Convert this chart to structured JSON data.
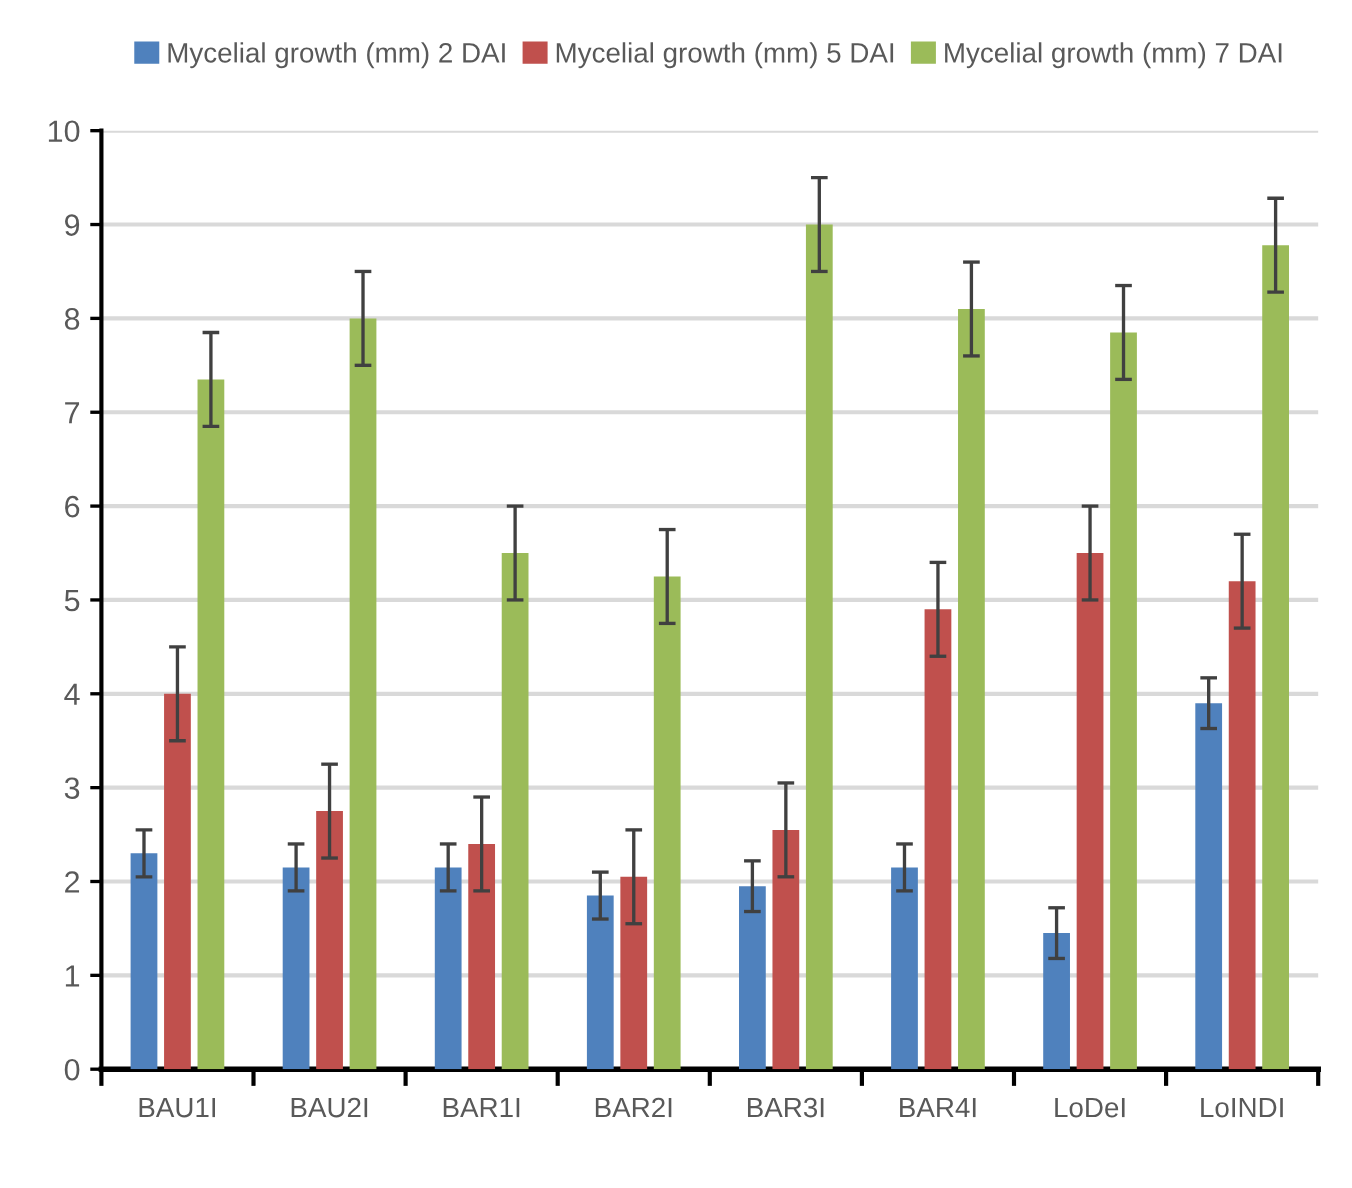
{
  "chart_data": {
    "type": "bar",
    "categories": [
      "BAU1I",
      "BAU2I",
      "BAR1I",
      "BAR2I",
      "BAR3I",
      "BAR4I",
      "LoDeI",
      "LoINDI"
    ],
    "series": [
      {
        "name": "Mycelial growth (mm) 2 DAI",
        "color": "#4f81bd",
        "values": [
          2.3,
          2.15,
          2.15,
          1.85,
          1.95,
          2.15,
          1.45,
          3.9
        ],
        "errors": [
          0.25,
          0.25,
          0.25,
          0.25,
          0.27,
          0.25,
          0.27,
          0.27
        ]
      },
      {
        "name": "Mycelial growth (mm) 5 DAI",
        "color": "#c0504d",
        "values": [
          4.0,
          2.75,
          2.4,
          2.05,
          2.55,
          4.9,
          5.5,
          5.2
        ],
        "errors": [
          0.5,
          0.5,
          0.5,
          0.5,
          0.5,
          0.5,
          0.5,
          0.5
        ]
      },
      {
        "name": "Mycelial growth (mm) 7 DAI",
        "color": "#9bbb59",
        "values": [
          7.35,
          8.0,
          5.5,
          5.25,
          9.0,
          8.1,
          7.85,
          8.78
        ],
        "errors": [
          0.5,
          0.5,
          0.5,
          0.5,
          0.5,
          0.5,
          0.5,
          0.5
        ]
      }
    ],
    "ylim": [
      0,
      10
    ],
    "yticks": [
      0,
      1,
      2,
      3,
      4,
      5,
      6,
      7,
      8,
      9,
      10
    ],
    "grid": "y",
    "legend": "top"
  }
}
